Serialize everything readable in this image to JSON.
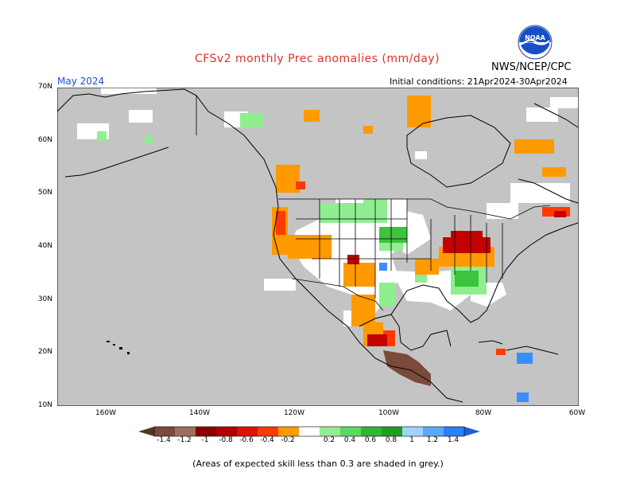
{
  "header": {
    "title": "CFSv2 monthly Prec anomalies (mm/day)",
    "agency": "NWS/NCEP/CPC",
    "forecast_month": "May 2024",
    "initial_conditions": "Initial conditions: 21Apr2024-30Apr2024",
    "logo_text": "NOAA"
  },
  "axes": {
    "latitude_labels": [
      "70N",
      "60N",
      "50N",
      "40N",
      "30N",
      "20N",
      "10N"
    ],
    "longitude_labels": [
      "160W",
      "140W",
      "120W",
      "100W",
      "80W",
      "60W"
    ]
  },
  "colorbar": {
    "labels": [
      "-1.4",
      "-1.2",
      "-1",
      "-0.8",
      "-0.6",
      "-0.4",
      "-0.2",
      "0.2",
      "0.4",
      "0.6",
      "0.8",
      "1",
      "1.2",
      "1.4"
    ],
    "colors": [
      "#7a4a3a",
      "#9c6f5e",
      "#b07f6e",
      "#8b0000",
      "#c40000",
      "#ff3a00",
      "#ff8c00",
      "#ffa500",
      "#ffffff",
      "#90ee90",
      "#5cd65c",
      "#2eb82e",
      "#1e9e1e",
      "#008c00",
      "#9dd5ff",
      "#5aa8ff",
      "#2a7fff"
    ]
  },
  "map": {
    "background_color": "#c4c4c4",
    "no_signal_color": "#ffffff",
    "regions": [
      {
        "name": "Ohio Valley / Midwest",
        "anomaly": "dry",
        "value": -0.8
      },
      {
        "name": "Southern Mexico",
        "anomaly": "dry",
        "value": -1.4
      },
      {
        "name": "Pacific Northwest coast",
        "anomaly": "dry",
        "value": -0.4
      },
      {
        "name": "Great Basin / Southwest",
        "anomaly": "dry",
        "value": -0.2
      },
      {
        "name": "Northern Plains",
        "anomaly": "wet",
        "value": 0.4
      },
      {
        "name": "Southeast US",
        "anomaly": "wet",
        "value": 0.4
      },
      {
        "name": "Caribbean (Hispaniola area)",
        "anomaly": "wet",
        "value": 1.2
      }
    ]
  },
  "footnote": "(Areas of expected skill less than 0.3 are shaded in grey.)"
}
